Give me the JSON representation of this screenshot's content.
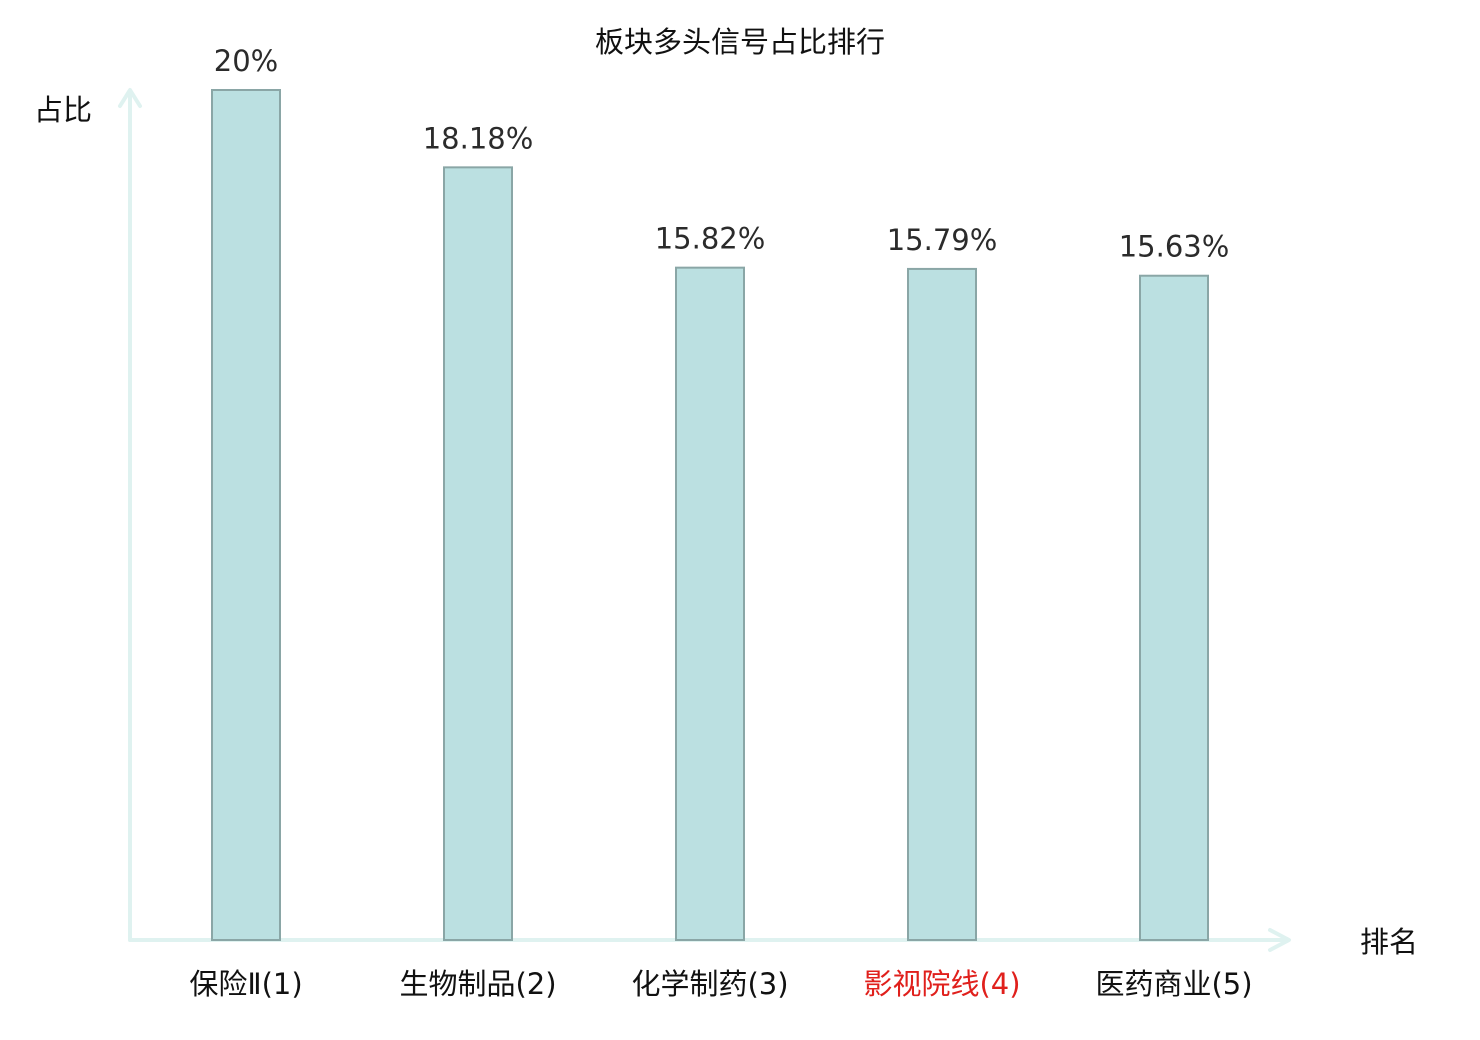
{
  "chart_data": {
    "type": "bar",
    "title": "板块多头信号占比排行",
    "ylabel": "占比",
    "xlabel": "排名",
    "categories": [
      "保险Ⅱ(1)",
      "生物制品(2)",
      "化学制药(3)",
      "影视院线(4)",
      "医药商业(5)"
    ],
    "values": [
      20,
      18.18,
      15.82,
      15.79,
      15.63
    ],
    "value_labels": [
      "20%",
      "18.18%",
      "15.82%",
      "15.79%",
      "15.63%"
    ],
    "ylim": [
      0,
      20
    ],
    "highlight_index": 3,
    "grid": false,
    "legend": "none",
    "colors": {
      "bar_fill": "#bbe0e1",
      "bar_stroke": "#8aa6a6",
      "axis": "#dff2f0",
      "highlight_text": "#e0201c",
      "text": "#111111",
      "value_text": "#2b2b2b"
    }
  }
}
